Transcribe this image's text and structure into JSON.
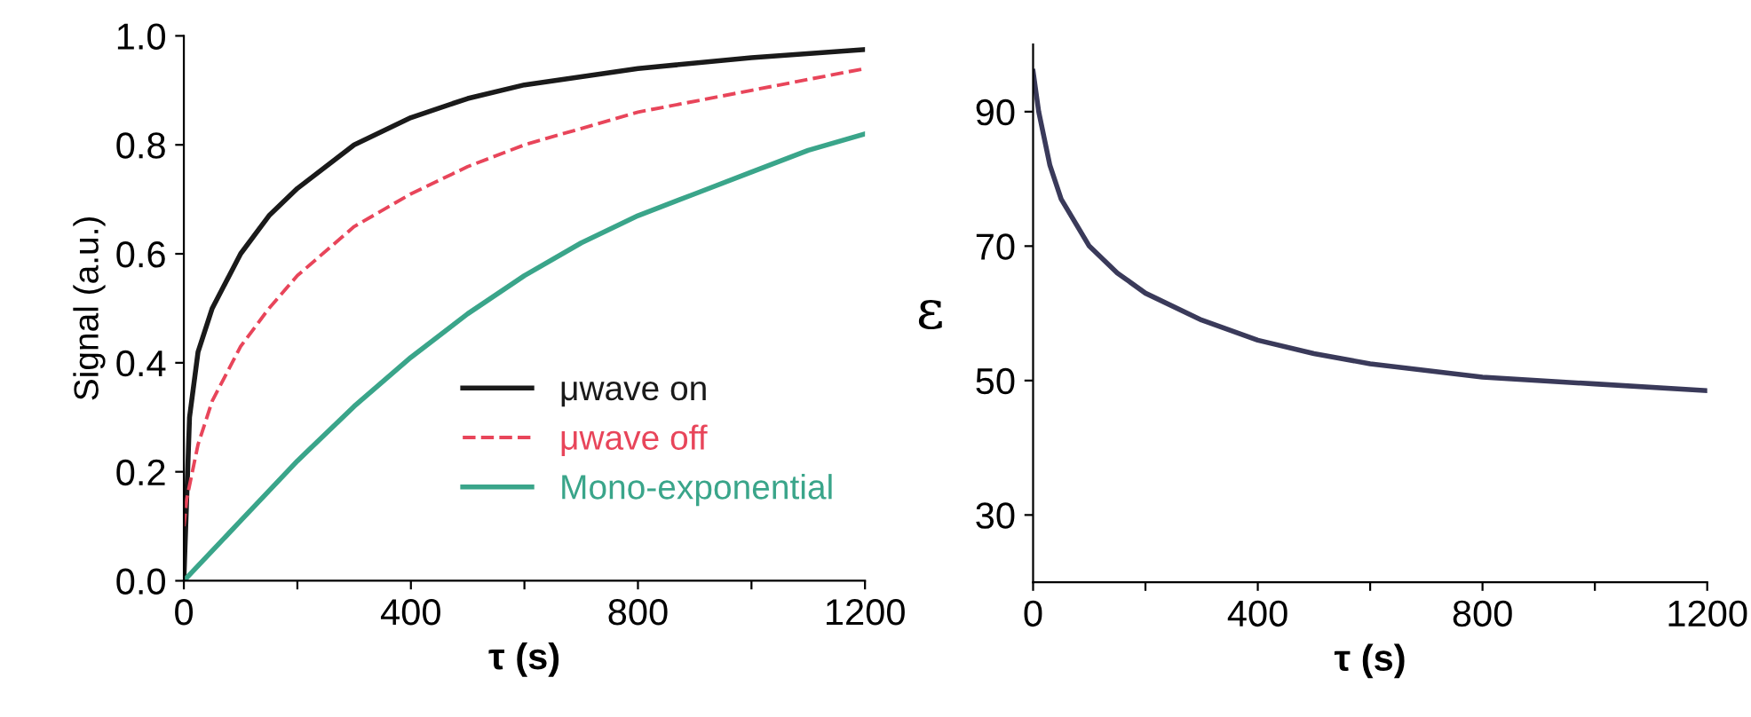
{
  "chart_data": [
    {
      "type": "line",
      "xlabel": "τ (s)",
      "ylabel": "Signal (a.u.)",
      "xlim": [
        0,
        1200
      ],
      "ylim": [
        0,
        1.0
      ],
      "xticks": [
        0,
        {
          "value": 200,
          "label": null
        },
        400,
        {
          "value": 600,
          "label": null
        },
        800,
        {
          "value": 1000,
          "label": null
        },
        1200
      ],
      "yticks": [
        {
          "value": 0,
          "label": "0.0"
        },
        0.2,
        0.4,
        0.6,
        0.8,
        {
          "value": 1.0,
          "label": "1.0"
        }
      ],
      "legend": "lower right",
      "grid": false,
      "series": [
        {
          "name": "μwave on",
          "color": "#1a1a1a",
          "line_style": "solid",
          "x": [
            0,
            10,
            25,
            50,
            100,
            150,
            200,
            300,
            400,
            500,
            600,
            800,
            1000,
            1200
          ],
          "values": [
            0,
            0.3,
            0.42,
            0.5,
            0.6,
            0.67,
            0.72,
            0.8,
            0.85,
            0.885,
            0.91,
            0.94,
            0.96,
            0.975
          ]
        },
        {
          "name": "μwave off",
          "color": "#e8455a",
          "line_style": "dashed",
          "x": [
            0,
            5,
            25,
            50,
            100,
            150,
            200,
            300,
            400,
            500,
            600,
            800,
            1000,
            1200
          ],
          "values": [
            0.1,
            0.15,
            0.25,
            0.33,
            0.43,
            0.5,
            0.56,
            0.65,
            0.71,
            0.76,
            0.8,
            0.86,
            0.9,
            0.94
          ]
        },
        {
          "name": "Mono-exponential",
          "color": "#3aa58a",
          "line_style": "solid",
          "x": [
            0,
            100,
            200,
            300,
            400,
            500,
            600,
            700,
            800,
            900,
            1000,
            1100,
            1200
          ],
          "values": [
            0,
            0.11,
            0.22,
            0.32,
            0.41,
            0.49,
            0.56,
            0.62,
            0.67,
            0.71,
            0.75,
            0.79,
            0.82
          ]
        }
      ]
    },
    {
      "type": "line",
      "xlabel": "τ (s)",
      "ylabel": "ε",
      "xlim": [
        0,
        1200
      ],
      "ylim": [
        20,
        100
      ],
      "xticks": [
        0,
        {
          "value": 200,
          "label": null
        },
        400,
        {
          "value": 600,
          "label": null
        },
        800,
        {
          "value": 1000,
          "label": null
        },
        1200
      ],
      "yticks": [
        30,
        50,
        70,
        90
      ],
      "grid": false,
      "series": [
        {
          "color": "#3a3a5a",
          "line_style": "solid",
          "x": [
            0,
            10,
            30,
            50,
            100,
            150,
            200,
            300,
            400,
            500,
            600,
            800,
            1000,
            1200
          ],
          "values": [
            96,
            90,
            82,
            77,
            70,
            66,
            63,
            59,
            56,
            54,
            52.5,
            50.5,
            49.5,
            48.5
          ]
        }
      ]
    }
  ]
}
